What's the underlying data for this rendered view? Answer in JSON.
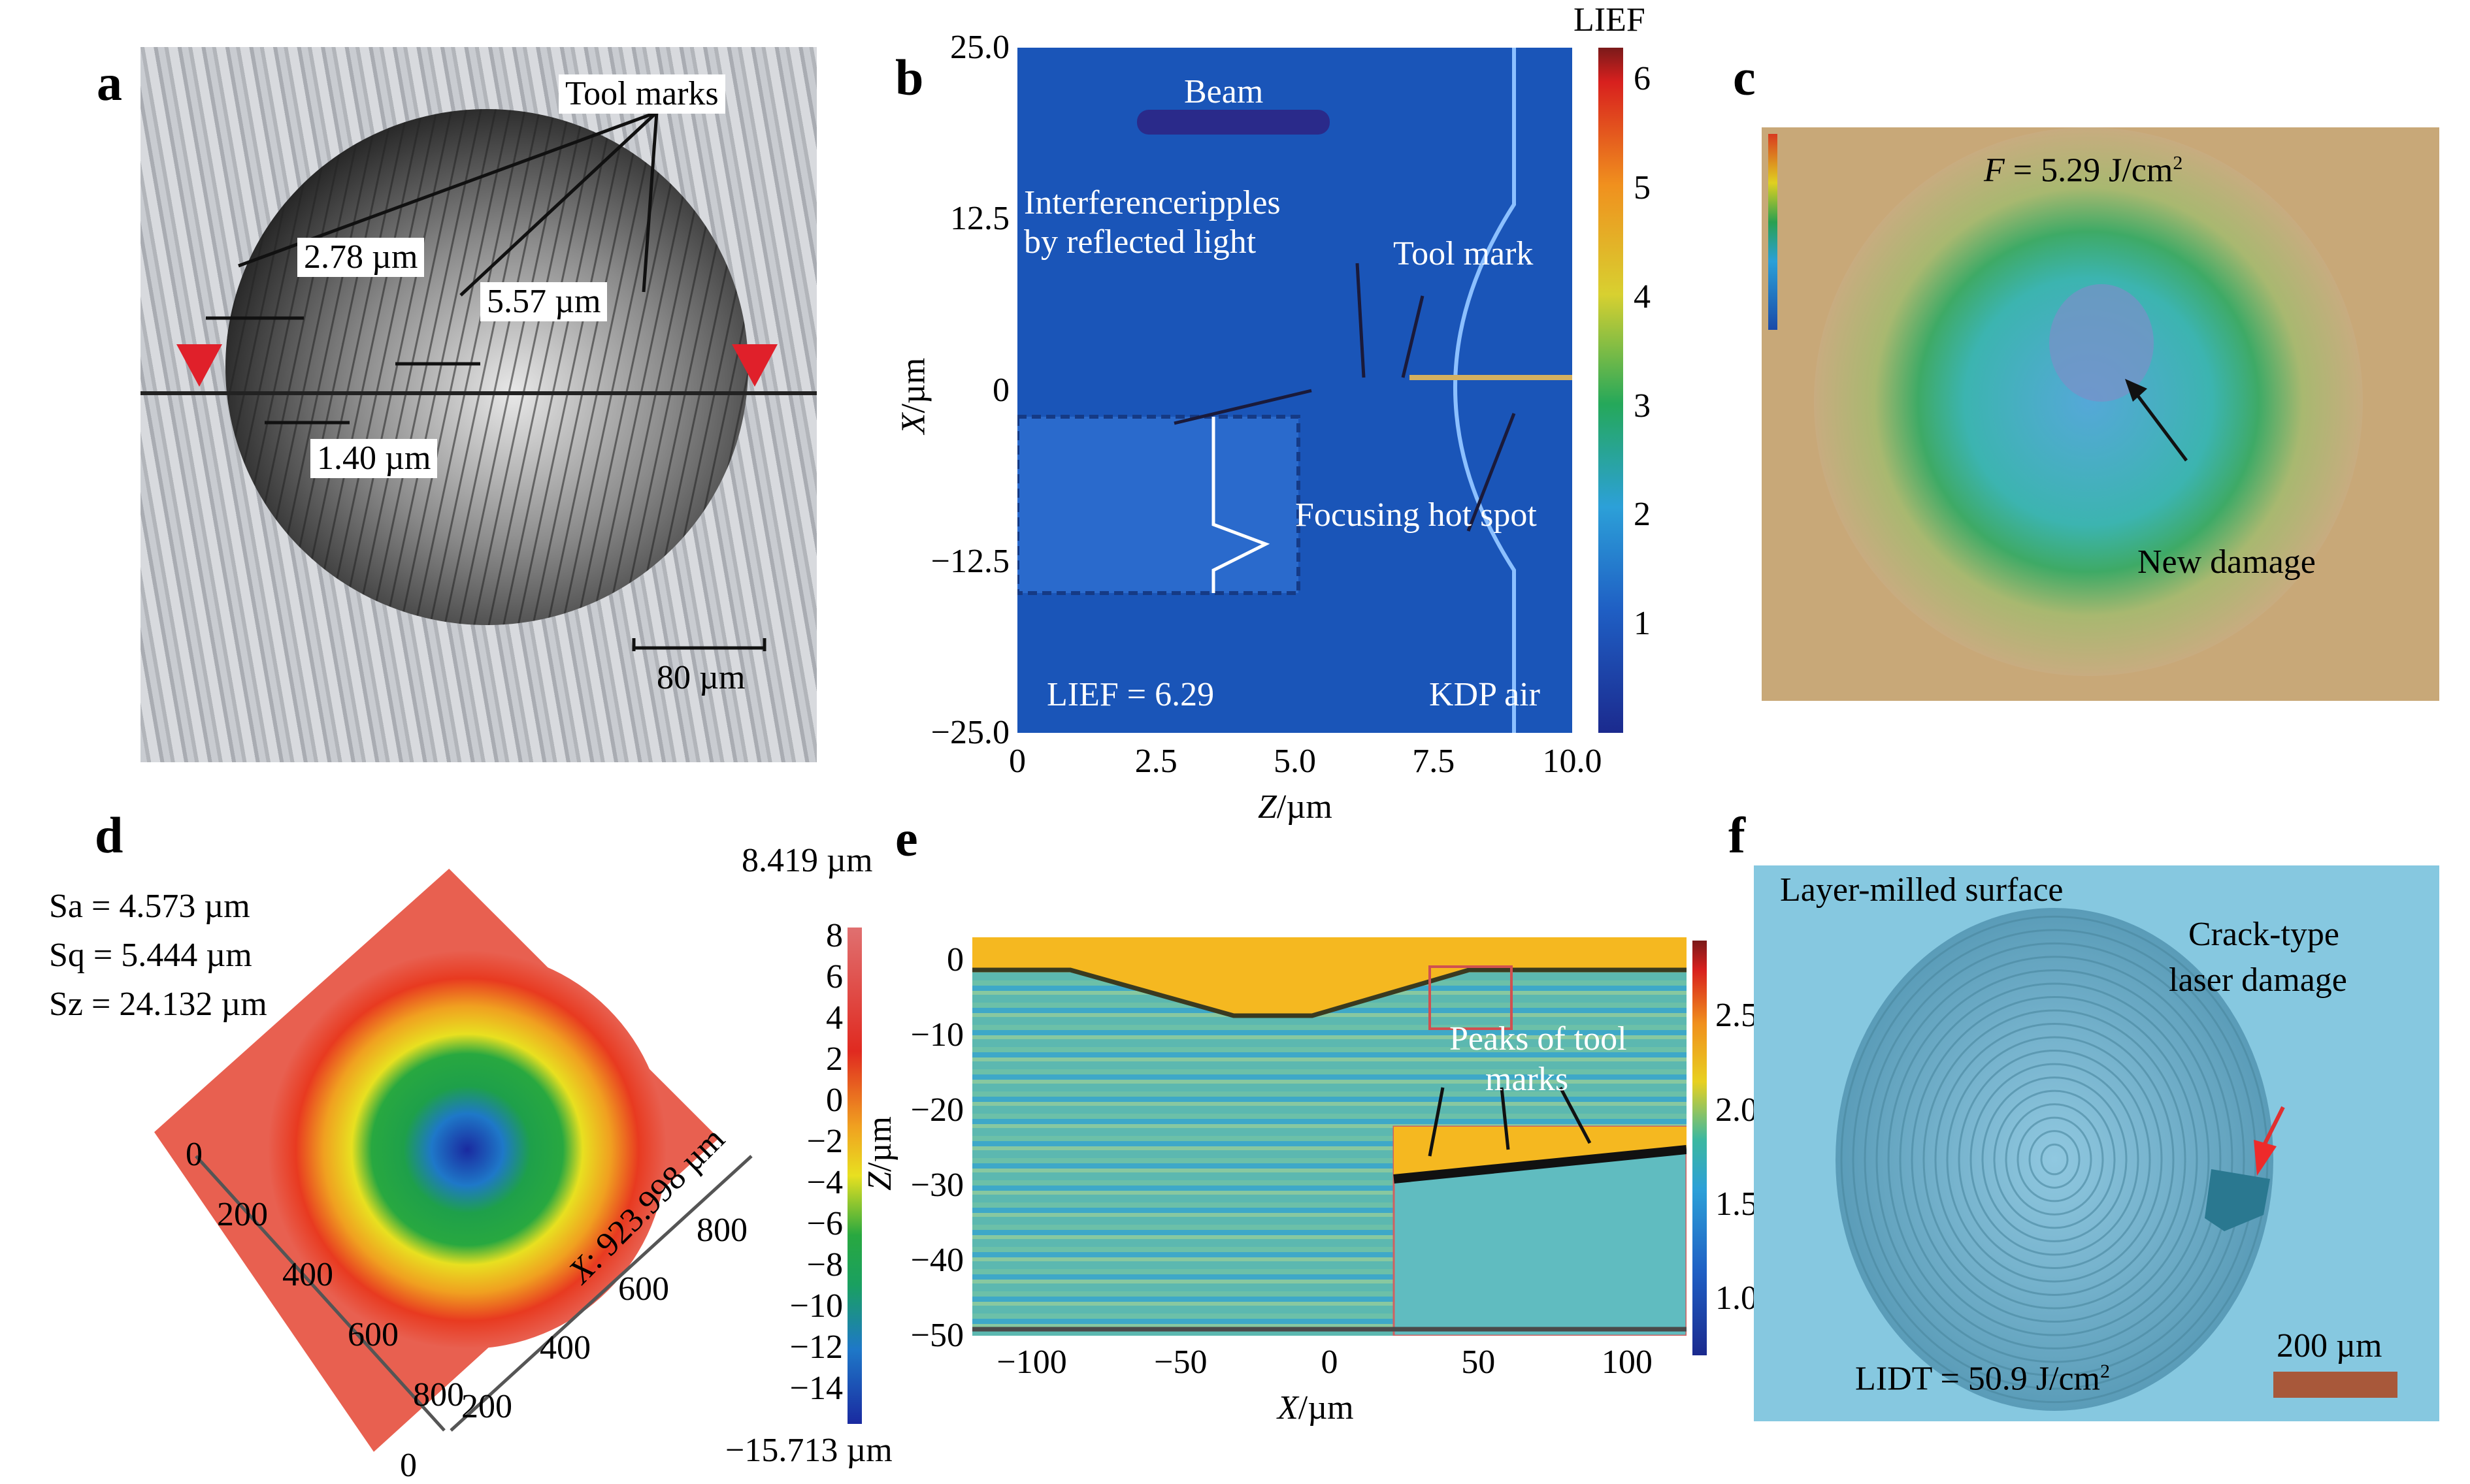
{
  "panels": {
    "a": {
      "label": "a",
      "annotations": {
        "tool_marks": "Tool marks",
        "d1": "2.78 µm",
        "d2": "5.57 µm",
        "d3": "1.40 µm"
      },
      "scale_bar": "80 µm",
      "marker_color": "#e0202a"
    },
    "b": {
      "label": "b",
      "annotations": {
        "beam": "Beam",
        "interference_l1": "Interferenceripples",
        "interference_l2": "by reflected light",
        "tool_mark": "Tool mark",
        "hot_spot": "Focusing hot spot",
        "lief_value": "LIEF = 6.29",
        "media": "KDP air"
      },
      "colorbar_title": "LIEF",
      "colorbar_ticks": [
        "6",
        "5",
        "4",
        "3",
        "2",
        "1"
      ],
      "xlabel_italic": "Z",
      "xlabel_unit": "/µm",
      "ylabel_italic": "X",
      "ylabel_unit": "/µm",
      "xticks": [
        "0",
        "2.5",
        "5.0",
        "7.5",
        "10.0"
      ],
      "yticks": [
        "25.0",
        "12.5",
        "0",
        "−12.5",
        "−25.0"
      ]
    },
    "c": {
      "label": "c",
      "fluence_italic": "F",
      "fluence_text": " = 5.29 J/cm",
      "fluence_sup": "2",
      "annotation": "New damage"
    },
    "d": {
      "label": "d",
      "stats": [
        "Sa = 4.573 µm",
        "Sq = 5.444 µm",
        "Sz = 24.132 µm"
      ],
      "colorbar_max": "8.419 µm",
      "colorbar_min": "−15.713 µm",
      "colorbar_ticks": [
        "8",
        "6",
        "4",
        "2",
        "0",
        "−2",
        "−4",
        "−6",
        "−8",
        "−10",
        "−12",
        "−14"
      ],
      "left_axis_ticks": [
        "0",
        "200",
        "400",
        "600",
        "800"
      ],
      "right_axis_ticks": [
        "800",
        "600",
        "400",
        "200",
        "0"
      ],
      "x_axis_label_italic": "X",
      "x_axis_label": ": 923.998 µm"
    },
    "e": {
      "label": "e",
      "annotation_l1": "Peaks of tool",
      "annotation_l2": "marks",
      "xlabel_italic": "X",
      "xlabel_unit": "/µm",
      "ylabel_italic": "Z",
      "ylabel_unit": "/µm",
      "xticks": [
        "−100",
        "−50",
        "0",
        "50",
        "100"
      ],
      "yticks": [
        "0",
        "−10",
        "−20",
        "−30",
        "−40",
        "−50"
      ],
      "colorbar_ticks": [
        "2.5",
        "2.0",
        "1.5",
        "1.0"
      ]
    },
    "f": {
      "label": "f",
      "surface": "Layer-milled surface",
      "damage_l1": "Crack-type",
      "damage_l2": "laser damage",
      "lidt_text": "LIDT = 50.9 J/cm",
      "lidt_sup": "2",
      "scale_bar": "200 µm"
    }
  },
  "chart_data": [
    {
      "type": "heatmap",
      "title": "b: LIEF field distribution",
      "xlabel": "Z/µm",
      "ylabel": "X/µm",
      "xlim": [
        0,
        10.0
      ],
      "ylim": [
        -25.0,
        25.0
      ],
      "xticks": [
        0,
        2.5,
        5.0,
        7.5,
        10.0
      ],
      "yticks": [
        25.0,
        12.5,
        0,
        -12.5,
        -25.0
      ],
      "colorbar": {
        "label": "LIEF",
        "range": [
          0,
          6.29
        ],
        "ticks": [
          1,
          2,
          3,
          4,
          5,
          6
        ]
      },
      "annotations": [
        "Beam",
        "Interferenceripples by reflected light",
        "Tool mark",
        "Focusing hot spot",
        "LIEF = 6.29",
        "KDP air"
      ]
    },
    {
      "type": "heatmap",
      "title": "d: 3D surface topography",
      "colorbar": {
        "label": "µm",
        "range": [
          -15.713,
          8.419
        ],
        "ticks": [
          8,
          6,
          4,
          2,
          0,
          -2,
          -4,
          -6,
          -8,
          -10,
          -12,
          -14
        ]
      },
      "axes": {
        "x_ticks": [
          0,
          200,
          400,
          600,
          800
        ],
        "y_ticks": [
          0,
          200,
          400,
          600,
          800
        ],
        "x_label": "X: 923.998 µm"
      },
      "stats": {
        "Sa_um": 4.573,
        "Sq_um": 5.444,
        "Sz_um": 24.132
      }
    },
    {
      "type": "heatmap",
      "title": "e: field in cross-section",
      "xlabel": "X/µm",
      "ylabel": "Z/µm",
      "xlim": [
        -120,
        120
      ],
      "ylim": [
        -50,
        3
      ],
      "xticks": [
        -100,
        -50,
        0,
        50,
        100
      ],
      "yticks": [
        0,
        -10,
        -20,
        -30,
        -40,
        -50
      ],
      "colorbar": {
        "range": [
          0.7,
          2.9
        ],
        "ticks": [
          1.0,
          1.5,
          2.0,
          2.5
        ]
      },
      "annotations": [
        "Peaks of tool marks"
      ]
    }
  ]
}
